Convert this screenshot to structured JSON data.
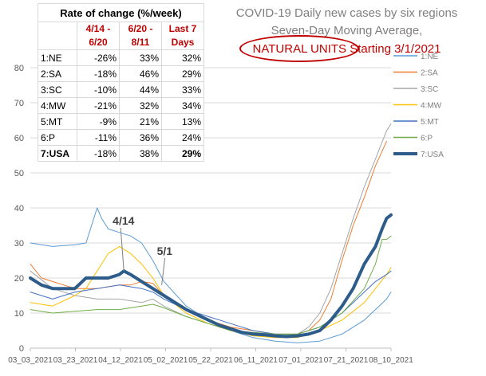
{
  "title": {
    "line1": "COVID-19 Daily new cases by six regions",
    "line2": "Seven-Day Moving Average,",
    "line3_highlight": "NATURAL UNITS",
    "line3_rest": " Starting 3/1/2021"
  },
  "rate_table": {
    "caption": "Rate of change (%/week)",
    "headers": [
      "4/14 - 6/20",
      "6/20 - 8/11",
      "Last 7 Days"
    ],
    "rows": [
      {
        "name": "1:NE",
        "values": [
          "-26%",
          "33%",
          "32%"
        ]
      },
      {
        "name": "2:SA",
        "values": [
          "-18%",
          "46%",
          "29%"
        ]
      },
      {
        "name": "3:SC",
        "values": [
          "-10%",
          "44%",
          "33%"
        ]
      },
      {
        "name": "4:MW",
        "values": [
          "-21%",
          "32%",
          "34%"
        ]
      },
      {
        "name": "5:MT",
        "values": [
          "-9%",
          "21%",
          "13%"
        ]
      },
      {
        "name": "6:P",
        "values": [
          "-11%",
          "36%",
          "24%"
        ]
      },
      {
        "name": "7:USA",
        "values": [
          "-18%",
          "38%",
          "29%"
        ]
      }
    ]
  },
  "chart_data": {
    "type": "line",
    "ylim": [
      0,
      80
    ],
    "yticks": [
      0,
      10,
      20,
      30,
      40,
      50,
      60,
      70,
      80
    ],
    "x_tick_labels": [
      "03_03_2021",
      "03_23_2021",
      "04_12_2021",
      "05_02_2021",
      "05_22_2021",
      "06_11_2021",
      "07_01_2021",
      "07_21_2021",
      "08_10_2021"
    ],
    "x_index_range": [
      0,
      162
    ],
    "grid": "horizontal",
    "legend_position": "right",
    "annotations": [
      {
        "text": "4/14",
        "x": 42,
        "y": 22
      },
      {
        "text": "5/1",
        "x": 59,
        "y": 18
      }
    ],
    "series": [
      {
        "name": "1:NE",
        "color": "#5b9bd5",
        "width": 1,
        "points": [
          [
            0,
            30
          ],
          [
            10,
            29
          ],
          [
            20,
            29.5
          ],
          [
            25,
            30
          ],
          [
            28,
            36
          ],
          [
            30,
            40
          ],
          [
            32,
            37
          ],
          [
            35,
            34
          ],
          [
            40,
            33
          ],
          [
            45,
            32
          ],
          [
            50,
            30
          ],
          [
            55,
            25
          ],
          [
            60,
            19
          ],
          [
            70,
            12
          ],
          [
            80,
            8
          ],
          [
            90,
            5
          ],
          [
            100,
            3
          ],
          [
            110,
            2
          ],
          [
            120,
            1.5
          ],
          [
            130,
            2
          ],
          [
            140,
            4
          ],
          [
            150,
            8
          ],
          [
            155,
            11
          ],
          [
            160,
            14
          ],
          [
            162,
            16
          ]
        ]
      },
      {
        "name": "2:SA",
        "color": "#ed7d31",
        "width": 1,
        "points": [
          [
            0,
            24
          ],
          [
            5,
            20
          ],
          [
            10,
            19
          ],
          [
            20,
            17
          ],
          [
            30,
            17
          ],
          [
            40,
            18
          ],
          [
            45,
            18
          ],
          [
            50,
            19
          ],
          [
            55,
            18.5
          ],
          [
            60,
            15
          ],
          [
            70,
            11
          ],
          [
            80,
            8
          ],
          [
            90,
            6
          ],
          [
            100,
            5
          ],
          [
            110,
            4
          ],
          [
            120,
            4
          ],
          [
            125,
            5
          ],
          [
            130,
            8
          ],
          [
            135,
            14
          ],
          [
            140,
            25
          ],
          [
            145,
            35
          ],
          [
            150,
            43
          ],
          [
            155,
            52
          ],
          [
            160,
            59
          ]
        ]
      },
      {
        "name": "3:SC",
        "color": "#a5a5a5",
        "width": 1,
        "points": [
          [
            0,
            22
          ],
          [
            10,
            17
          ],
          [
            20,
            15
          ],
          [
            30,
            14
          ],
          [
            40,
            14
          ],
          [
            50,
            13
          ],
          [
            55,
            14
          ],
          [
            60,
            12
          ],
          [
            70,
            9
          ],
          [
            80,
            7
          ],
          [
            90,
            5
          ],
          [
            100,
            4
          ],
          [
            110,
            3.5
          ],
          [
            120,
            4
          ],
          [
            125,
            6
          ],
          [
            130,
            10
          ],
          [
            135,
            17
          ],
          [
            140,
            27
          ],
          [
            145,
            37
          ],
          [
            150,
            46
          ],
          [
            155,
            54
          ],
          [
            160,
            62
          ],
          [
            162,
            64
          ]
        ]
      },
      {
        "name": "4:MW",
        "color": "#ffc000",
        "width": 1,
        "points": [
          [
            0,
            13
          ],
          [
            10,
            12
          ],
          [
            20,
            15
          ],
          [
            25,
            17
          ],
          [
            30,
            22
          ],
          [
            35,
            27
          ],
          [
            40,
            29
          ],
          [
            45,
            27
          ],
          [
            50,
            24
          ],
          [
            55,
            20
          ],
          [
            60,
            15
          ],
          [
            70,
            10
          ],
          [
            80,
            7
          ],
          [
            90,
            5
          ],
          [
            100,
            3.5
          ],
          [
            110,
            3
          ],
          [
            120,
            3
          ],
          [
            130,
            5
          ],
          [
            140,
            8
          ],
          [
            150,
            13
          ],
          [
            155,
            17
          ],
          [
            160,
            21
          ],
          [
            162,
            23
          ]
        ]
      },
      {
        "name": "5:MT",
        "color": "#4472c4",
        "width": 1,
        "points": [
          [
            0,
            16
          ],
          [
            10,
            14
          ],
          [
            20,
            16
          ],
          [
            30,
            17
          ],
          [
            40,
            18
          ],
          [
            50,
            17
          ],
          [
            55,
            16
          ],
          [
            60,
            14
          ],
          [
            70,
            11
          ],
          [
            80,
            9
          ],
          [
            90,
            7
          ],
          [
            100,
            5
          ],
          [
            110,
            4
          ],
          [
            120,
            4
          ],
          [
            130,
            6
          ],
          [
            140,
            10
          ],
          [
            150,
            16
          ],
          [
            155,
            19
          ],
          [
            160,
            21
          ],
          [
            162,
            22
          ]
        ]
      },
      {
        "name": "6:P",
        "color": "#70ad47",
        "width": 1,
        "points": [
          [
            0,
            11
          ],
          [
            10,
            10
          ],
          [
            20,
            10.5
          ],
          [
            30,
            11
          ],
          [
            40,
            11
          ],
          [
            50,
            12
          ],
          [
            55,
            12.5
          ],
          [
            60,
            11.5
          ],
          [
            70,
            9
          ],
          [
            80,
            7
          ],
          [
            90,
            5
          ],
          [
            100,
            4.5
          ],
          [
            110,
            4
          ],
          [
            120,
            4
          ],
          [
            130,
            6
          ],
          [
            140,
            10
          ],
          [
            150,
            17
          ],
          [
            155,
            24
          ],
          [
            158,
            31
          ],
          [
            160,
            31
          ],
          [
            162,
            32
          ]
        ]
      },
      {
        "name": "7:USA",
        "color": "#2e5c8a",
        "width": 4,
        "points": [
          [
            0,
            20
          ],
          [
            5,
            18
          ],
          [
            10,
            17
          ],
          [
            15,
            17
          ],
          [
            20,
            17
          ],
          [
            25,
            20
          ],
          [
            30,
            20
          ],
          [
            35,
            20
          ],
          [
            40,
            21
          ],
          [
            42,
            22
          ],
          [
            45,
            21
          ],
          [
            50,
            19
          ],
          [
            55,
            17
          ],
          [
            60,
            15
          ],
          [
            65,
            13
          ],
          [
            70,
            11
          ],
          [
            75,
            9.5
          ],
          [
            80,
            8
          ],
          [
            85,
            6.5
          ],
          [
            90,
            5.5
          ],
          [
            95,
            4.5
          ],
          [
            100,
            4
          ],
          [
            105,
            3.8
          ],
          [
            110,
            3.5
          ],
          [
            115,
            3.3
          ],
          [
            120,
            3.5
          ],
          [
            125,
            4
          ],
          [
            130,
            5
          ],
          [
            135,
            8
          ],
          [
            140,
            12
          ],
          [
            145,
            17
          ],
          [
            150,
            24
          ],
          [
            155,
            29
          ],
          [
            158,
            34
          ],
          [
            160,
            37
          ],
          [
            162,
            38
          ]
        ]
      }
    ]
  }
}
